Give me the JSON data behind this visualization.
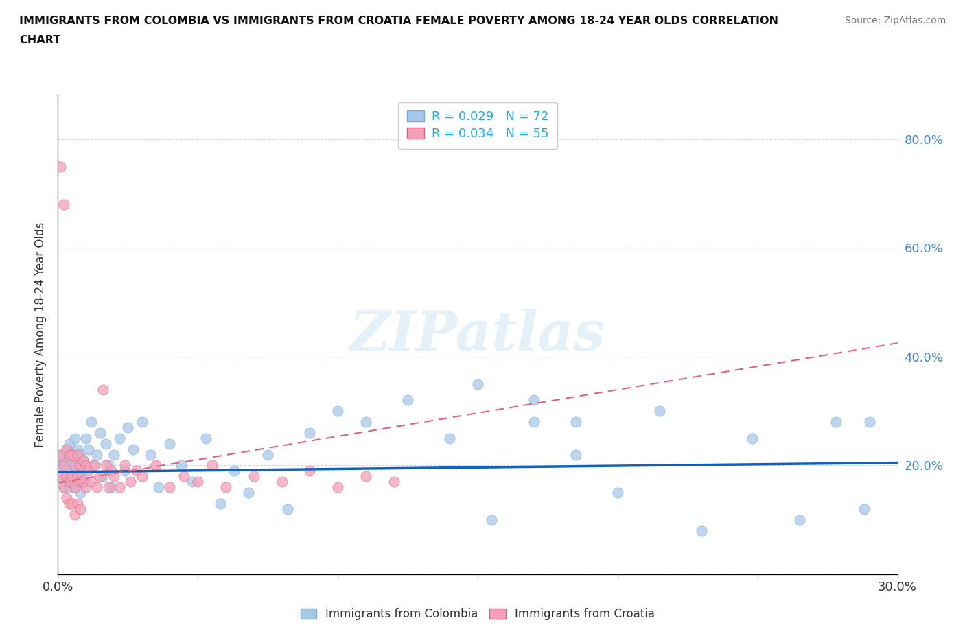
{
  "title_line1": "IMMIGRANTS FROM COLOMBIA VS IMMIGRANTS FROM CROATIA FEMALE POVERTY AMONG 18-24 YEAR OLDS CORRELATION",
  "title_line2": "CHART",
  "source": "Source: ZipAtlas.com",
  "ylabel": "Female Poverty Among 18-24 Year Olds",
  "xlim": [
    0.0,
    0.3
  ],
  "ylim": [
    0.0,
    0.88
  ],
  "xticks": [
    0.0,
    0.05,
    0.1,
    0.15,
    0.2,
    0.25,
    0.3
  ],
  "xticklabels": [
    "0.0%",
    "",
    "",
    "",
    "",
    "",
    "30.0%"
  ],
  "yticks": [
    0.0,
    0.2,
    0.4,
    0.6,
    0.8
  ],
  "yticklabels_right": [
    "",
    "20.0%",
    "40.0%",
    "60.0%",
    "80.0%"
  ],
  "colombia_color": "#a8c8e8",
  "croatia_color": "#f4a0b8",
  "colombia_edge": "#7aaad0",
  "croatia_edge": "#e06080",
  "colombia_trend_color": "#1060c0",
  "croatia_trend_color": "#e06080",
  "colombia_R": 0.029,
  "colombia_N": 72,
  "croatia_R": 0.034,
  "croatia_N": 55,
  "watermark": "ZIPatlas",
  "colombia_scatter_x": [
    0.001,
    0.001,
    0.002,
    0.002,
    0.002,
    0.003,
    0.003,
    0.003,
    0.004,
    0.004,
    0.004,
    0.005,
    0.005,
    0.005,
    0.006,
    0.006,
    0.006,
    0.007,
    0.007,
    0.007,
    0.008,
    0.008,
    0.008,
    0.009,
    0.009,
    0.01,
    0.01,
    0.011,
    0.012,
    0.013,
    0.014,
    0.015,
    0.016,
    0.017,
    0.018,
    0.019,
    0.02,
    0.022,
    0.024,
    0.025,
    0.027,
    0.03,
    0.033,
    0.036,
    0.04,
    0.044,
    0.048,
    0.053,
    0.058,
    0.063,
    0.068,
    0.075,
    0.082,
    0.09,
    0.1,
    0.11,
    0.125,
    0.14,
    0.155,
    0.17,
    0.185,
    0.2,
    0.215,
    0.23,
    0.248,
    0.265,
    0.278,
    0.288,
    0.15,
    0.17,
    0.185,
    0.29
  ],
  "colombia_scatter_y": [
    0.2,
    0.22,
    0.18,
    0.21,
    0.16,
    0.23,
    0.19,
    0.17,
    0.24,
    0.18,
    0.16,
    0.22,
    0.2,
    0.17,
    0.25,
    0.19,
    0.16,
    0.23,
    0.2,
    0.17,
    0.22,
    0.18,
    0.15,
    0.21,
    0.19,
    0.25,
    0.17,
    0.23,
    0.28,
    0.2,
    0.22,
    0.26,
    0.18,
    0.24,
    0.2,
    0.16,
    0.22,
    0.25,
    0.19,
    0.27,
    0.23,
    0.28,
    0.22,
    0.16,
    0.24,
    0.2,
    0.17,
    0.25,
    0.13,
    0.19,
    0.15,
    0.22,
    0.12,
    0.26,
    0.3,
    0.28,
    0.32,
    0.25,
    0.1,
    0.28,
    0.22,
    0.15,
    0.3,
    0.08,
    0.25,
    0.1,
    0.28,
    0.12,
    0.35,
    0.32,
    0.28,
    0.28
  ],
  "croatia_scatter_x": [
    0.001,
    0.001,
    0.001,
    0.002,
    0.002,
    0.002,
    0.003,
    0.003,
    0.003,
    0.004,
    0.004,
    0.004,
    0.005,
    0.005,
    0.005,
    0.006,
    0.006,
    0.006,
    0.007,
    0.007,
    0.007,
    0.008,
    0.008,
    0.008,
    0.009,
    0.009,
    0.01,
    0.01,
    0.011,
    0.012,
    0.013,
    0.014,
    0.015,
    0.016,
    0.017,
    0.018,
    0.019,
    0.02,
    0.022,
    0.024,
    0.026,
    0.028,
    0.03,
    0.035,
    0.04,
    0.045,
    0.05,
    0.055,
    0.06,
    0.07,
    0.08,
    0.09,
    0.1,
    0.11,
    0.12
  ],
  "croatia_scatter_y": [
    0.75,
    0.22,
    0.18,
    0.68,
    0.2,
    0.16,
    0.23,
    0.18,
    0.14,
    0.22,
    0.17,
    0.13,
    0.22,
    0.18,
    0.13,
    0.2,
    0.16,
    0.11,
    0.22,
    0.18,
    0.13,
    0.2,
    0.17,
    0.12,
    0.21,
    0.17,
    0.2,
    0.16,
    0.19,
    0.17,
    0.2,
    0.16,
    0.18,
    0.34,
    0.2,
    0.16,
    0.19,
    0.18,
    0.16,
    0.2,
    0.17,
    0.19,
    0.18,
    0.2,
    0.16,
    0.18,
    0.17,
    0.2,
    0.16,
    0.18,
    0.17,
    0.19,
    0.16,
    0.18,
    0.17
  ],
  "col_trend_x": [
    0.0,
    0.3
  ],
  "col_trend_y": [
    0.188,
    0.205
  ],
  "cro_trend_x": [
    0.0,
    0.3
  ],
  "cro_trend_y": [
    0.168,
    0.425
  ]
}
